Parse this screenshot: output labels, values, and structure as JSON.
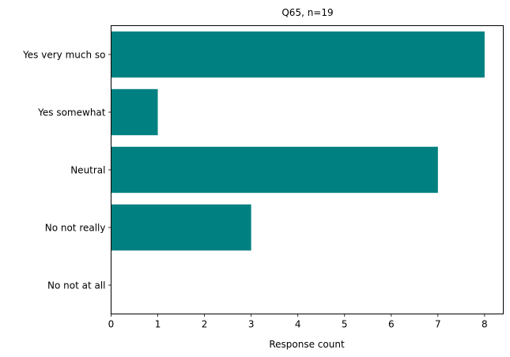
{
  "chart_data": {
    "type": "bar",
    "orientation": "horizontal",
    "title": "Q65, n=19",
    "xlabel": "Response count",
    "ylabel": "",
    "categories": [
      "Yes very much so",
      "Yes somewhat",
      "Neutral",
      "No not really",
      "No not at all"
    ],
    "values": [
      8,
      1,
      7,
      3,
      0
    ],
    "xlim": [
      0,
      8.4
    ],
    "xticks": [
      0,
      1,
      2,
      3,
      4,
      5,
      6,
      7,
      8
    ],
    "grid": false,
    "legend": "none",
    "bar_color": "#008080"
  }
}
